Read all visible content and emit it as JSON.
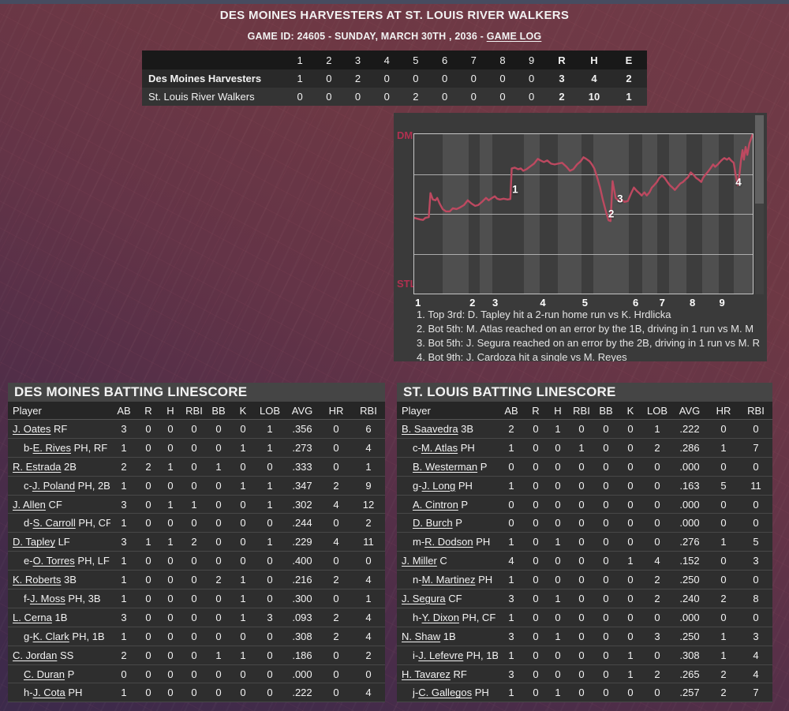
{
  "colors": {
    "accent_line": "#bd4960",
    "team_label": "#b13050",
    "band_dark": "#3d3d3d",
    "band_light": "#4f4f4f",
    "panel_bg": "#3a3a3a",
    "table_bg": "#2e2e2e",
    "header_bar_bg": "#454545",
    "col_header_bg": "#262626",
    "scoreboard_header_bg": "#191919",
    "row_dm_bg": "#292929",
    "row_stl_bg": "#343434"
  },
  "header": {
    "title": "DES MOINES HARVESTERS AT ST. LOUIS RIVER WALKERS",
    "subtitle_prefix": "GAME ID: 24605 - SUNDAY, MARCH 30TH , 2036 - ",
    "game_log_label": "GAME LOG"
  },
  "scoreboard": {
    "columns": [
      "1",
      "2",
      "3",
      "4",
      "5",
      "6",
      "7",
      "8",
      "9",
      "R",
      "H",
      "E"
    ],
    "teams": [
      {
        "name": "Des Moines Harvesters",
        "bold": true,
        "innings": [
          "1",
          "0",
          "2",
          "0",
          "0",
          "0",
          "0",
          "0",
          "0"
        ],
        "r": "3",
        "h": "4",
        "e": "2"
      },
      {
        "name": "St. Louis River Walkers",
        "bold": false,
        "innings": [
          "0",
          "0",
          "0",
          "0",
          "2",
          "0",
          "0",
          "0",
          "0"
        ],
        "r": "2",
        "h": "10",
        "e": "1"
      }
    ]
  },
  "chart_data": {
    "type": "line",
    "description": "Win probability by plate appearance, Des Moines (top) vs St. Louis (bottom)",
    "y_top_label": "DM",
    "y_bottom_label": "STL",
    "x_tick_labels": [
      "1",
      "2",
      "3",
      "4",
      "5",
      "6",
      "7",
      "8",
      "9"
    ],
    "x_tick_pos_pct": [
      0.5,
      16.5,
      23.2,
      37.2,
      49.6,
      64.5,
      72.3,
      81.2,
      89.9
    ],
    "band_boundaries_pct": [
      0,
      8.3,
      16.2,
      19.3,
      23.0,
      32.3,
      37.0,
      42.4,
      49.4,
      52.9,
      63.4,
      67.3,
      71.9,
      75.4,
      80.4,
      85.1,
      89.9,
      94.4,
      100
    ],
    "gridlines_pct": [
      25,
      50,
      75
    ],
    "ylim": [
      0,
      100
    ],
    "win_probability_dm_pct": [
      [
        0,
        47.5
      ],
      [
        1.7,
        46.5
      ],
      [
        2.6,
        46.2
      ],
      [
        3.3,
        47.5
      ],
      [
        4.3,
        48
      ],
      [
        4.8,
        63
      ],
      [
        5.5,
        59
      ],
      [
        6.3,
        58.5
      ],
      [
        6.8,
        60
      ],
      [
        7.5,
        56.5
      ],
      [
        8.4,
        53
      ],
      [
        9.4,
        51.5
      ],
      [
        10.5,
        51.5
      ],
      [
        11.4,
        53.5
      ],
      [
        12.5,
        53
      ],
      [
        13.5,
        54
      ],
      [
        14.7,
        55.5
      ],
      [
        15.8,
        58.5
      ],
      [
        16.9,
        56.5
      ],
      [
        18,
        55
      ],
      [
        18.9,
        55.5
      ],
      [
        20,
        57.5
      ],
      [
        21.2,
        60
      ],
      [
        22,
        58.5
      ],
      [
        23,
        60
      ],
      [
        23.8,
        61
      ],
      [
        24.5,
        59.5
      ],
      [
        25.3,
        59
      ],
      [
        26.4,
        59.5
      ],
      [
        27.6,
        59
      ],
      [
        28.4,
        59.3
      ],
      [
        28.8,
        78.5
      ],
      [
        29.7,
        79
      ],
      [
        30.7,
        78
      ],
      [
        31.5,
        78.5
      ],
      [
        32.2,
        77
      ],
      [
        33.2,
        78
      ],
      [
        34.1,
        79.5
      ],
      [
        35.4,
        81.5
      ],
      [
        36.5,
        84.5
      ],
      [
        37.3,
        83.5
      ],
      [
        38.3,
        82.5
      ],
      [
        39.3,
        83.5
      ],
      [
        40.4,
        81.5
      ],
      [
        41.5,
        81
      ],
      [
        42.5,
        81.5
      ],
      [
        43.7,
        82
      ],
      [
        45,
        79.5
      ],
      [
        46,
        77
      ],
      [
        47,
        78
      ],
      [
        48.1,
        81
      ],
      [
        49.2,
        83
      ],
      [
        50,
        85.5
      ],
      [
        50.8,
        84.5
      ],
      [
        51.8,
        83
      ],
      [
        52.5,
        81
      ],
      [
        53.2,
        78.5
      ],
      [
        54.1,
        72.5
      ],
      [
        54.9,
        66.5
      ],
      [
        55.7,
        59
      ],
      [
        56.5,
        52.5
      ],
      [
        57.4,
        46
      ],
      [
        58,
        45.5
      ],
      [
        58.6,
        70.5
      ],
      [
        59.5,
        60
      ],
      [
        60.5,
        58
      ],
      [
        61.2,
        59
      ],
      [
        62.1,
        57.5
      ],
      [
        63.1,
        58
      ],
      [
        64.1,
        63
      ],
      [
        64.9,
        66.5
      ],
      [
        65.7,
        64.5
      ],
      [
        66.5,
        63
      ],
      [
        67.2,
        61.5
      ],
      [
        68,
        63.5
      ],
      [
        68.7,
        61.5
      ],
      [
        69.5,
        63.5
      ],
      [
        70.2,
        66.5
      ],
      [
        70.9,
        68
      ],
      [
        71.7,
        70
      ],
      [
        72.4,
        72.5
      ],
      [
        73.2,
        74
      ],
      [
        74,
        72.5
      ],
      [
        74.8,
        70
      ],
      [
        75.5,
        68
      ],
      [
        76.3,
        66.5
      ],
      [
        77,
        65
      ],
      [
        77.8,
        67
      ],
      [
        78.6,
        69
      ],
      [
        79.4,
        70
      ],
      [
        80.1,
        71.5
      ],
      [
        80.9,
        73
      ],
      [
        81.7,
        76
      ],
      [
        82.5,
        74.5
      ],
      [
        83.3,
        72.5
      ],
      [
        84,
        71.5
      ],
      [
        84.8,
        70
      ],
      [
        85.3,
        72.5
      ],
      [
        86,
        74.5
      ],
      [
        86.8,
        76.5
      ],
      [
        87.5,
        78.5
      ],
      [
        88.3,
        81
      ],
      [
        88.9,
        79.5
      ],
      [
        89.7,
        81
      ],
      [
        90.5,
        83
      ],
      [
        91,
        84
      ],
      [
        91.6,
        85
      ],
      [
        92.4,
        84
      ],
      [
        93,
        85
      ],
      [
        93.6,
        83.5
      ],
      [
        94.4,
        82
      ],
      [
        95,
        74
      ],
      [
        95.6,
        68
      ],
      [
        96.1,
        75
      ],
      [
        96.5,
        83
      ],
      [
        97,
        90
      ],
      [
        97.4,
        84
      ],
      [
        97.9,
        92
      ],
      [
        98.4,
        87
      ],
      [
        99,
        94
      ],
      [
        99.5,
        97
      ],
      [
        100,
        100
      ]
    ],
    "markers": [
      {
        "label": "1",
        "x_pct": 29.8,
        "y_pct_from_top": 34.7
      },
      {
        "label": "2",
        "x_pct": 58.2,
        "y_pct_from_top": 49.9
      },
      {
        "label": "3",
        "x_pct": 60.8,
        "y_pct_from_top": 40.4
      },
      {
        "label": "4",
        "x_pct": 95.8,
        "y_pct_from_top": 30.1
      }
    ],
    "events": [
      "1. Top 3rd: D. Tapley hit a 2-run home run vs K. Hrdlicka",
      "2. Bot 5th: M. Atlas reached on an error by the 1B, driving in 1 run vs M. M",
      "3. Bot 5th: J. Segura reached on an error by the 2B, driving in 1 run vs M. R",
      "4. Bot 9th: J. Cardoza hit a single vs M. Reyes"
    ]
  },
  "dm_batting": {
    "title": "DES MOINES BATTING LINESCORE",
    "columns": [
      "Player",
      "AB",
      "R",
      "H",
      "RBI",
      "BB",
      "K",
      "LOB",
      "AVG",
      "HR",
      "RBI"
    ],
    "rows": [
      {
        "indent": false,
        "prefix": "",
        "name": "J. Oates",
        "pos": "RF",
        "stats": [
          "3",
          "0",
          "0",
          "0",
          "0",
          "0",
          "1",
          ".356",
          "0",
          "6"
        ]
      },
      {
        "indent": true,
        "prefix": "b-",
        "name": "E. Rives",
        "pos": "PH, RF",
        "stats": [
          "1",
          "0",
          "0",
          "0",
          "0",
          "1",
          "1",
          ".273",
          "0",
          "4"
        ]
      },
      {
        "indent": false,
        "prefix": "",
        "name": "R. Estrada",
        "pos": "2B",
        "stats": [
          "2",
          "2",
          "1",
          "0",
          "1",
          "0",
          "0",
          ".333",
          "0",
          "1"
        ]
      },
      {
        "indent": true,
        "prefix": "c-",
        "name": "J. Poland",
        "pos": "PH, 2B",
        "stats": [
          "1",
          "0",
          "0",
          "0",
          "0",
          "1",
          "1",
          ".347",
          "2",
          "9"
        ]
      },
      {
        "indent": false,
        "prefix": "",
        "name": "J. Allen",
        "pos": "CF",
        "stats": [
          "3",
          "0",
          "1",
          "1",
          "0",
          "0",
          "1",
          ".302",
          "4",
          "12"
        ]
      },
      {
        "indent": true,
        "prefix": "d-",
        "name": "S. Carroll",
        "pos": "PH, CF",
        "stats": [
          "1",
          "0",
          "0",
          "0",
          "0",
          "0",
          "0",
          ".244",
          "0",
          "2"
        ]
      },
      {
        "indent": false,
        "prefix": "",
        "name": "D. Tapley",
        "pos": "LF",
        "stats": [
          "3",
          "1",
          "1",
          "2",
          "0",
          "0",
          "1",
          ".229",
          "4",
          "11"
        ]
      },
      {
        "indent": true,
        "prefix": "e-",
        "name": "O. Torres",
        "pos": "PH, LF",
        "stats": [
          "1",
          "0",
          "0",
          "0",
          "0",
          "0",
          "0",
          ".400",
          "0",
          "0"
        ]
      },
      {
        "indent": false,
        "prefix": "",
        "name": "K. Roberts",
        "pos": "3B",
        "stats": [
          "1",
          "0",
          "0",
          "0",
          "2",
          "1",
          "0",
          ".216",
          "2",
          "4"
        ]
      },
      {
        "indent": true,
        "prefix": "f-",
        "name": "J. Moss",
        "pos": "PH, 3B",
        "stats": [
          "1",
          "0",
          "0",
          "0",
          "0",
          "1",
          "0",
          ".300",
          "0",
          "1"
        ]
      },
      {
        "indent": false,
        "prefix": "",
        "name": "L. Cerna",
        "pos": "1B",
        "stats": [
          "3",
          "0",
          "0",
          "0",
          "0",
          "1",
          "3",
          ".093",
          "2",
          "4"
        ]
      },
      {
        "indent": true,
        "prefix": "g-",
        "name": "K. Clark",
        "pos": "PH, 1B",
        "stats": [
          "1",
          "0",
          "0",
          "0",
          "0",
          "0",
          "0",
          ".308",
          "2",
          "4"
        ]
      },
      {
        "indent": false,
        "prefix": "",
        "name": "C. Jordan",
        "pos": "SS",
        "stats": [
          "2",
          "0",
          "0",
          "0",
          "1",
          "1",
          "0",
          ".186",
          "0",
          "2"
        ]
      },
      {
        "indent": true,
        "prefix": "",
        "name": "C. Duran",
        "pos": "P",
        "stats": [
          "0",
          "0",
          "0",
          "0",
          "0",
          "0",
          "0",
          ".000",
          "0",
          "0"
        ]
      },
      {
        "indent": true,
        "prefix": "h-",
        "name": "J. Cota",
        "pos": "PH",
        "stats": [
          "1",
          "0",
          "0",
          "0",
          "0",
          "0",
          "0",
          ".222",
          "0",
          "4"
        ]
      }
    ]
  },
  "stl_batting": {
    "title": "ST. LOUIS BATTING LINESCORE",
    "columns": [
      "Player",
      "AB",
      "R",
      "H",
      "RBI",
      "BB",
      "K",
      "LOB",
      "AVG",
      "HR",
      "RBI"
    ],
    "rows": [
      {
        "indent": false,
        "prefix": "",
        "name": "B. Saavedra",
        "pos": "3B",
        "stats": [
          "2",
          "0",
          "1",
          "0",
          "0",
          "0",
          "1",
          ".222",
          "0",
          "0"
        ]
      },
      {
        "indent": true,
        "prefix": "c-",
        "name": "M. Atlas",
        "pos": "PH",
        "stats": [
          "1",
          "0",
          "0",
          "1",
          "0",
          "0",
          "2",
          ".286",
          "1",
          "7"
        ]
      },
      {
        "indent": true,
        "prefix": "",
        "name": "B. Westerman",
        "pos": "P",
        "stats": [
          "0",
          "0",
          "0",
          "0",
          "0",
          "0",
          "0",
          ".000",
          "0",
          "0"
        ]
      },
      {
        "indent": true,
        "prefix": "g-",
        "name": "J. Long",
        "pos": "PH",
        "stats": [
          "1",
          "0",
          "0",
          "0",
          "0",
          "0",
          "0",
          ".163",
          "5",
          "11"
        ]
      },
      {
        "indent": true,
        "prefix": "",
        "name": "A. Cintron",
        "pos": "P",
        "stats": [
          "0",
          "0",
          "0",
          "0",
          "0",
          "0",
          "0",
          ".000",
          "0",
          "0"
        ]
      },
      {
        "indent": true,
        "prefix": "",
        "name": "D. Burch",
        "pos": "P",
        "stats": [
          "0",
          "0",
          "0",
          "0",
          "0",
          "0",
          "0",
          ".000",
          "0",
          "0"
        ]
      },
      {
        "indent": true,
        "prefix": "m-",
        "name": "R. Dodson",
        "pos": "PH",
        "stats": [
          "1",
          "0",
          "1",
          "0",
          "0",
          "0",
          "0",
          ".276",
          "1",
          "5"
        ]
      },
      {
        "indent": false,
        "prefix": "",
        "name": "J. Miller",
        "pos": "C",
        "stats": [
          "4",
          "0",
          "0",
          "0",
          "0",
          "1",
          "4",
          ".152",
          "0",
          "3"
        ]
      },
      {
        "indent": true,
        "prefix": "n-",
        "name": "M. Martinez",
        "pos": "PH",
        "stats": [
          "1",
          "0",
          "0",
          "0",
          "0",
          "0",
          "2",
          ".250",
          "0",
          "0"
        ]
      },
      {
        "indent": false,
        "prefix": "",
        "name": "J. Segura",
        "pos": "CF",
        "stats": [
          "3",
          "0",
          "1",
          "0",
          "0",
          "0",
          "2",
          ".240",
          "2",
          "8"
        ]
      },
      {
        "indent": true,
        "prefix": "h-",
        "name": "Y. Dixon",
        "pos": "PH, CF",
        "stats": [
          "1",
          "0",
          "0",
          "0",
          "0",
          "0",
          "0",
          ".000",
          "0",
          "0"
        ]
      },
      {
        "indent": false,
        "prefix": "",
        "name": "N. Shaw",
        "pos": "1B",
        "stats": [
          "3",
          "0",
          "1",
          "0",
          "0",
          "0",
          "3",
          ".250",
          "1",
          "3"
        ]
      },
      {
        "indent": true,
        "prefix": "i-",
        "name": "J. Lefevre",
        "pos": "PH, 1B",
        "stats": [
          "1",
          "0",
          "0",
          "0",
          "0",
          "1",
          "0",
          ".308",
          "1",
          "4"
        ]
      },
      {
        "indent": false,
        "prefix": "",
        "name": "H. Tavarez",
        "pos": "RF",
        "stats": [
          "3",
          "0",
          "0",
          "0",
          "0",
          "1",
          "2",
          ".265",
          "2",
          "4"
        ]
      },
      {
        "indent": true,
        "prefix": "j-",
        "name": "C. Gallegos",
        "pos": "PH",
        "stats": [
          "1",
          "0",
          "1",
          "0",
          "0",
          "0",
          "0",
          ".257",
          "2",
          "7"
        ]
      }
    ]
  }
}
